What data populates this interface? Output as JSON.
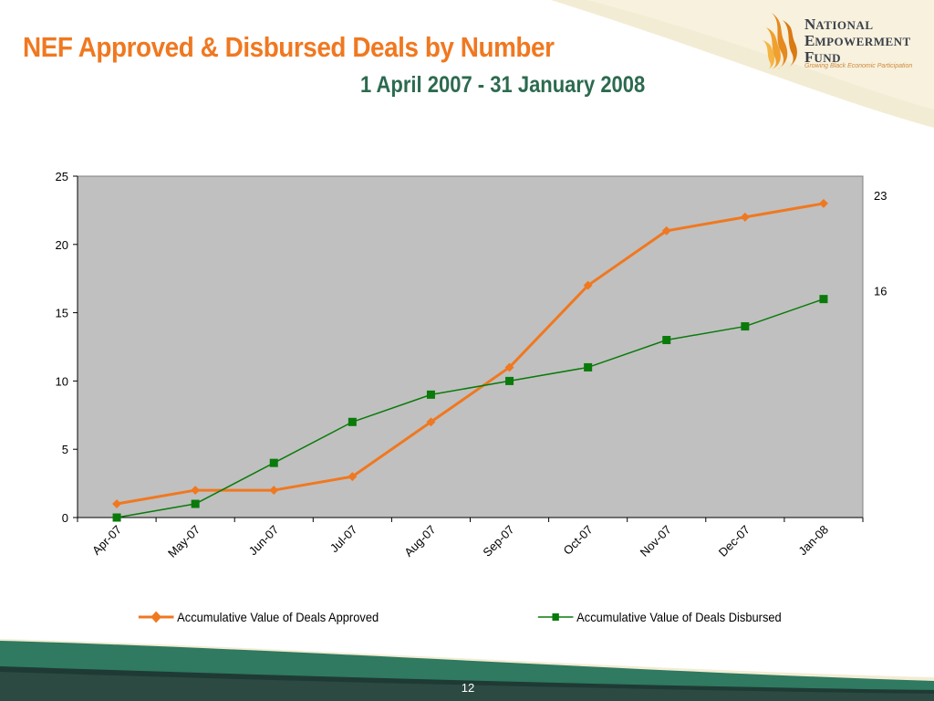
{
  "slide": {
    "title": "NEF Approved & Disbursed Deals by Number",
    "subtitle": "1 April 2007 - 31 January 2008",
    "page_number": "12"
  },
  "logo": {
    "line1_cap": "N",
    "line1_rest": "ATIONAL",
    "line2_cap": "E",
    "line2_rest": "MPOWERMENT",
    "line3_cap": "F",
    "line3_rest": "UND",
    "tagline": "Growing Black Economic Participation",
    "icon": "flame-stripes-icon"
  },
  "colors": {
    "title": "#f07820",
    "subtitle": "#2c6a4f",
    "plot_background": "#c0c0c0",
    "approved": "#f07820",
    "disbursed": "#0a7a0a",
    "footer_dark": "#1f3a34",
    "footer_green": "#2f7a60"
  },
  "chart_data": {
    "type": "line",
    "categories": [
      "Apr-07",
      "May-07",
      "Jun-07",
      "Jul-07",
      "Aug-07",
      "Sep-07",
      "Oct-07",
      "Nov-07",
      "Dec-07",
      "Jan-08"
    ],
    "series": [
      {
        "name": "Accumulative Value of Deals Approved",
        "marker": "diamond",
        "values": [
          1,
          2,
          2,
          3,
          7,
          11,
          17,
          21,
          22,
          23
        ]
      },
      {
        "name": "Accumulative Value of Deals Disbursed",
        "marker": "square",
        "values": [
          0,
          1,
          4,
          7,
          9,
          10,
          11,
          13,
          14,
          16
        ]
      }
    ],
    "y_ticks": [
      "0",
      "5",
      "10",
      "15",
      "20",
      "25"
    ],
    "ylim": [
      0,
      25
    ],
    "end_labels": [
      "23",
      "16"
    ],
    "grid": false,
    "legend_position": "bottom",
    "xlabel": "",
    "ylabel": ""
  }
}
